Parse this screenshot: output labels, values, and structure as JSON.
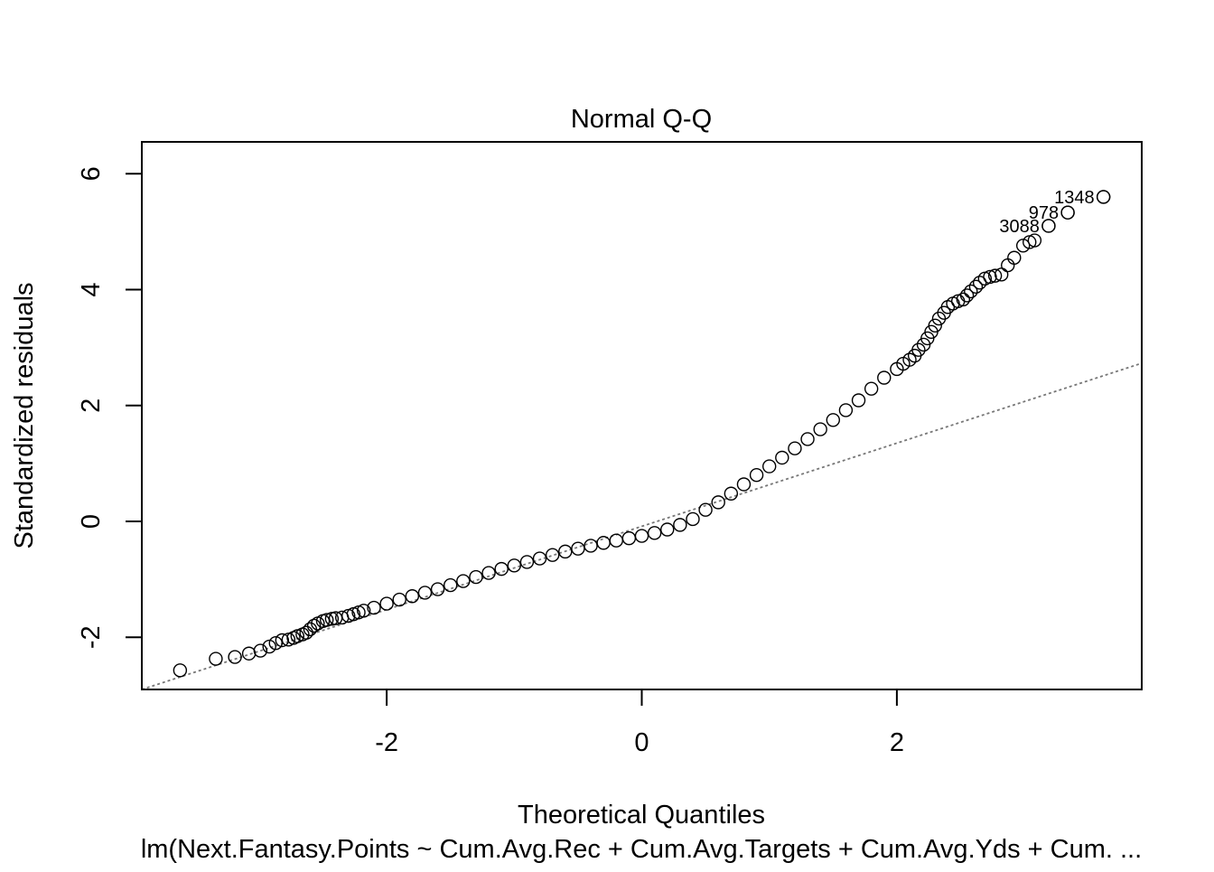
{
  "chart_data": {
    "type": "scatter",
    "title": "Normal Q-Q",
    "xlabel": "Theoretical Quantiles",
    "ylabel": "Standardized residuals",
    "subtitle": "lm(Next.Fantasy.Points ~ Cum.Avg.Rec + Cum.Avg.Targets + Cum.Avg.Yds + Cum. ...",
    "xlim": [
      -3.92,
      3.92
    ],
    "ylim": [
      -2.9,
      6.55
    ],
    "xticks": [
      -2,
      0,
      2
    ],
    "yticks": [
      -2,
      0,
      2,
      4,
      6
    ],
    "x_tick_labels": [
      "-2",
      "0",
      "2"
    ],
    "y_tick_labels": [
      "-2",
      "0",
      "2",
      "4",
      "6"
    ],
    "grid": false,
    "legend": false,
    "reference_line": {
      "style": "dotted",
      "color": "#777777",
      "points": [
        [
          -3.92,
          -2.9
        ],
        [
          3.92,
          2.73
        ]
      ]
    },
    "labeled_points": [
      {
        "label": "1348",
        "x": 3.62,
        "y": 5.6
      },
      {
        "label": "978",
        "x": 3.34,
        "y": 5.33
      },
      {
        "label": "3088",
        "x": 3.19,
        "y": 5.1
      }
    ],
    "points": [
      [
        -3.62,
        -2.57
      ],
      [
        -3.34,
        -2.37
      ],
      [
        -3.19,
        -2.34
      ],
      [
        -3.08,
        -2.28
      ],
      [
        -2.99,
        -2.23
      ],
      [
        -2.92,
        -2.16
      ],
      [
        -2.87,
        -2.1
      ],
      [
        -2.82,
        -2.05
      ],
      [
        -2.77,
        -2.04
      ],
      [
        -2.73,
        -2.01
      ],
      [
        -2.7,
        -1.98
      ],
      [
        -2.66,
        -1.95
      ],
      [
        -2.63,
        -1.92
      ],
      [
        -2.6,
        -1.86
      ],
      [
        -2.57,
        -1.8
      ],
      [
        -2.54,
        -1.76
      ],
      [
        -2.5,
        -1.72
      ],
      [
        -2.47,
        -1.7
      ],
      [
        -2.43,
        -1.68
      ],
      [
        -2.4,
        -1.67
      ],
      [
        -2.35,
        -1.66
      ],
      [
        -2.3,
        -1.63
      ],
      [
        -2.26,
        -1.6
      ],
      [
        -2.22,
        -1.57
      ],
      [
        -2.18,
        -1.54
      ],
      [
        -2.1,
        -1.49
      ],
      [
        -2.0,
        -1.42
      ],
      [
        -1.9,
        -1.35
      ],
      [
        -1.8,
        -1.29
      ],
      [
        -1.7,
        -1.23
      ],
      [
        -1.6,
        -1.17
      ],
      [
        -1.5,
        -1.1
      ],
      [
        -1.4,
        -1.03
      ],
      [
        -1.3,
        -0.96
      ],
      [
        -1.2,
        -0.89
      ],
      [
        -1.1,
        -0.82
      ],
      [
        -1.0,
        -0.76
      ],
      [
        -0.9,
        -0.7
      ],
      [
        -0.8,
        -0.64
      ],
      [
        -0.7,
        -0.58
      ],
      [
        -0.6,
        -0.52
      ],
      [
        -0.5,
        -0.47
      ],
      [
        -0.4,
        -0.42
      ],
      [
        -0.3,
        -0.37
      ],
      [
        -0.2,
        -0.33
      ],
      [
        -0.1,
        -0.29
      ],
      [
        0.0,
        -0.25
      ],
      [
        0.1,
        -0.2
      ],
      [
        0.2,
        -0.14
      ],
      [
        0.3,
        -0.06
      ],
      [
        0.4,
        0.04
      ],
      [
        0.5,
        0.2
      ],
      [
        0.6,
        0.33
      ],
      [
        0.7,
        0.48
      ],
      [
        0.8,
        0.64
      ],
      [
        0.9,
        0.8
      ],
      [
        1.0,
        0.95
      ],
      [
        1.1,
        1.1
      ],
      [
        1.2,
        1.26
      ],
      [
        1.3,
        1.42
      ],
      [
        1.4,
        1.59
      ],
      [
        1.5,
        1.75
      ],
      [
        1.6,
        1.92
      ],
      [
        1.7,
        2.09
      ],
      [
        1.8,
        2.29
      ],
      [
        1.9,
        2.48
      ],
      [
        2.0,
        2.63
      ],
      [
        2.05,
        2.72
      ],
      [
        2.1,
        2.79
      ],
      [
        2.14,
        2.86
      ],
      [
        2.17,
        2.96
      ],
      [
        2.21,
        3.05
      ],
      [
        2.24,
        3.16
      ],
      [
        2.27,
        3.27
      ],
      [
        2.3,
        3.38
      ],
      [
        2.33,
        3.5
      ],
      [
        2.37,
        3.6
      ],
      [
        2.4,
        3.7
      ],
      [
        2.44,
        3.76
      ],
      [
        2.48,
        3.8
      ],
      [
        2.52,
        3.83
      ],
      [
        2.55,
        3.9
      ],
      [
        2.58,
        3.97
      ],
      [
        2.62,
        4.05
      ],
      [
        2.65,
        4.12
      ],
      [
        2.69,
        4.19
      ],
      [
        2.73,
        4.22
      ],
      [
        2.77,
        4.24
      ],
      [
        2.82,
        4.26
      ],
      [
        2.87,
        4.42
      ],
      [
        2.92,
        4.55
      ],
      [
        2.99,
        4.76
      ],
      [
        3.04,
        4.82
      ],
      [
        3.08,
        4.85
      ],
      [
        3.19,
        5.1
      ],
      [
        3.34,
        5.33
      ],
      [
        3.62,
        5.6
      ]
    ]
  }
}
